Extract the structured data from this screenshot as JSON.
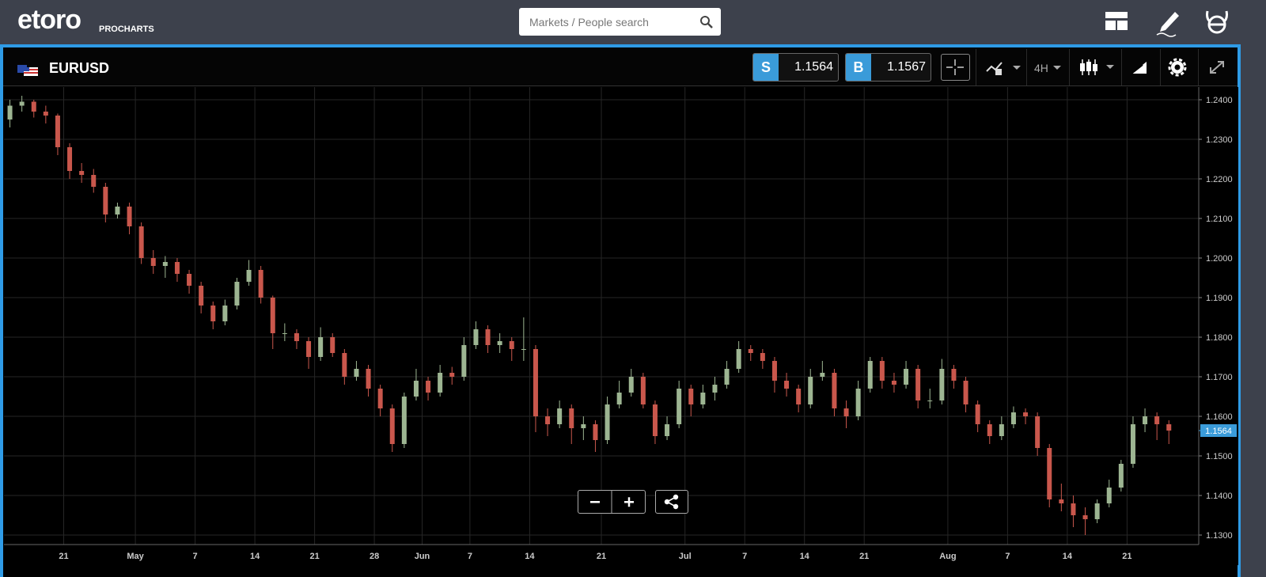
{
  "header": {
    "logo": "etoro",
    "brand": "PROCHARTS",
    "search_placeholder": "Markets / People search"
  },
  "toolbar": {
    "symbol": "EURUSD",
    "sell_label": "S",
    "sell_price": "1.1564",
    "buy_label": "B",
    "buy_price": "1.1567",
    "timeframe": "4H"
  },
  "chart_data": {
    "type": "candlestick",
    "up_color": "#9db592",
    "down_color": "#c9574c",
    "grid": true,
    "tag_color": "#3a9bd9",
    "last_price": 1.1564,
    "ylim": [
      1.1276,
      1.2432
    ],
    "yticks": [
      {
        "value": 1.13,
        "label": "1.1300"
      },
      {
        "value": 1.14,
        "label": "1.1400"
      },
      {
        "value": 1.15,
        "label": "1.1500"
      },
      {
        "value": 1.16,
        "label": "1.1600"
      },
      {
        "value": 1.17,
        "label": "1.1700"
      },
      {
        "value": 1.18,
        "label": "1.1800"
      },
      {
        "value": 1.19,
        "label": "1.1900"
      },
      {
        "value": 1.2,
        "label": "1.2000"
      },
      {
        "value": 1.21,
        "label": "1.2100"
      },
      {
        "value": 1.22,
        "label": "1.2200"
      },
      {
        "value": 1.23,
        "label": "1.2300"
      },
      {
        "value": 1.24,
        "label": "1.2400"
      }
    ],
    "categories": [
      null,
      null,
      null,
      null,
      null,
      "21",
      null,
      null,
      null,
      null,
      null,
      "May",
      null,
      null,
      null,
      null,
      "7",
      null,
      null,
      null,
      null,
      "14",
      null,
      null,
      null,
      null,
      "21",
      null,
      null,
      null,
      null,
      "28",
      null,
      null,
      null,
      "Jun",
      null,
      null,
      null,
      "7",
      null,
      null,
      null,
      null,
      "14",
      null,
      null,
      null,
      null,
      null,
      "21",
      null,
      null,
      null,
      null,
      null,
      null,
      "Jul",
      null,
      null,
      null,
      null,
      "7",
      null,
      null,
      null,
      null,
      "14",
      null,
      null,
      null,
      null,
      "21",
      null,
      null,
      null,
      null,
      null,
      null,
      "Aug",
      null,
      null,
      null,
      null,
      "7",
      null,
      null,
      null,
      null,
      "14",
      null,
      null,
      null,
      null,
      "21",
      null,
      null,
      null,
      null,
      null
    ],
    "ohlc": [
      [
        1.235,
        1.24,
        1.233,
        1.2385
      ],
      [
        1.2385,
        1.241,
        1.237,
        1.2395
      ],
      [
        1.2395,
        1.24,
        1.2355,
        1.237
      ],
      [
        1.237,
        1.2385,
        1.234,
        1.236
      ],
      [
        1.236,
        1.2365,
        1.226,
        1.228
      ],
      [
        1.228,
        1.229,
        1.22,
        1.222
      ],
      [
        1.222,
        1.224,
        1.219,
        1.221
      ],
      [
        1.221,
        1.2225,
        1.2165,
        1.218
      ],
      [
        1.218,
        1.219,
        1.209,
        1.211
      ],
      [
        1.211,
        1.214,
        1.21,
        1.213
      ],
      [
        1.213,
        1.214,
        1.206,
        1.208
      ],
      [
        1.208,
        1.209,
        1.1985,
        1.2
      ],
      [
        1.2,
        1.202,
        1.196,
        1.198
      ],
      [
        1.198,
        1.2005,
        1.195,
        1.199
      ],
      [
        1.199,
        1.2,
        1.194,
        1.196
      ],
      [
        1.196,
        1.197,
        1.191,
        1.193
      ],
      [
        1.193,
        1.194,
        1.186,
        1.188
      ],
      [
        1.188,
        1.189,
        1.182,
        1.184
      ],
      [
        1.184,
        1.1895,
        1.183,
        1.188
      ],
      [
        1.188,
        1.195,
        1.187,
        1.194
      ],
      [
        1.194,
        1.1995,
        1.193,
        1.197
      ],
      [
        1.197,
        1.198,
        1.1885,
        1.19
      ],
      [
        1.19,
        1.1905,
        1.177,
        1.181
      ],
      [
        1.181,
        1.1835,
        1.179,
        1.181
      ],
      [
        1.181,
        1.182,
        1.177,
        1.179
      ],
      [
        1.179,
        1.18,
        1.172,
        1.175
      ],
      [
        1.175,
        1.1825,
        1.174,
        1.18
      ],
      [
        1.18,
        1.181,
        1.175,
        1.176
      ],
      [
        1.176,
        1.177,
        1.168,
        1.17
      ],
      [
        1.17,
        1.174,
        1.169,
        1.172
      ],
      [
        1.172,
        1.173,
        1.165,
        1.167
      ],
      [
        1.167,
        1.168,
        1.16,
        1.162
      ],
      [
        1.162,
        1.163,
        1.151,
        1.153
      ],
      [
        1.153,
        1.166,
        1.152,
        1.165
      ],
      [
        1.165,
        1.172,
        1.164,
        1.169
      ],
      [
        1.169,
        1.17,
        1.164,
        1.166
      ],
      [
        1.166,
        1.173,
        1.165,
        1.171
      ],
      [
        1.171,
        1.1725,
        1.168,
        1.17
      ],
      [
        1.17,
        1.18,
        1.169,
        1.178
      ],
      [
        1.178,
        1.184,
        1.177,
        1.182
      ],
      [
        1.182,
        1.183,
        1.176,
        1.178
      ],
      [
        1.178,
        1.181,
        1.176,
        1.179
      ],
      [
        1.179,
        1.18,
        1.174,
        1.177
      ],
      [
        1.177,
        1.185,
        1.174,
        1.177
      ],
      [
        1.177,
        1.178,
        1.156,
        1.16
      ],
      [
        1.16,
        1.162,
        1.155,
        1.158
      ],
      [
        1.158,
        1.164,
        1.157,
        1.162
      ],
      [
        1.162,
        1.163,
        1.153,
        1.157
      ],
      [
        1.157,
        1.16,
        1.154,
        1.158
      ],
      [
        1.158,
        1.159,
        1.151,
        1.154
      ],
      [
        1.154,
        1.165,
        1.153,
        1.163
      ],
      [
        1.163,
        1.169,
        1.162,
        1.166
      ],
      [
        1.166,
        1.172,
        1.165,
        1.17
      ],
      [
        1.17,
        1.171,
        1.162,
        1.163
      ],
      [
        1.163,
        1.164,
        1.153,
        1.155
      ],
      [
        1.155,
        1.16,
        1.154,
        1.158
      ],
      [
        1.158,
        1.169,
        1.157,
        1.167
      ],
      [
        1.167,
        1.168,
        1.16,
        1.163
      ],
      [
        1.163,
        1.168,
        1.162,
        1.166
      ],
      [
        1.166,
        1.17,
        1.164,
        1.168
      ],
      [
        1.168,
        1.174,
        1.167,
        1.172
      ],
      [
        1.172,
        1.179,
        1.171,
        1.177
      ],
      [
        1.177,
        1.178,
        1.174,
        1.176
      ],
      [
        1.176,
        1.177,
        1.172,
        1.174
      ],
      [
        1.174,
        1.175,
        1.166,
        1.169
      ],
      [
        1.169,
        1.171,
        1.165,
        1.167
      ],
      [
        1.167,
        1.168,
        1.161,
        1.163
      ],
      [
        1.163,
        1.172,
        1.162,
        1.17
      ],
      [
        1.17,
        1.174,
        1.169,
        1.171
      ],
      [
        1.171,
        1.172,
        1.16,
        1.162
      ],
      [
        1.162,
        1.164,
        1.157,
        1.16
      ],
      [
        1.16,
        1.169,
        1.159,
        1.167
      ],
      [
        1.167,
        1.175,
        1.166,
        1.174
      ],
      [
        1.174,
        1.175,
        1.167,
        1.169
      ],
      [
        1.169,
        1.171,
        1.166,
        1.168
      ],
      [
        1.168,
        1.174,
        1.167,
        1.172
      ],
      [
        1.172,
        1.173,
        1.162,
        1.164
      ],
      [
        1.164,
        1.167,
        1.162,
        1.164
      ],
      [
        1.164,
        1.1745,
        1.163,
        1.172
      ],
      [
        1.172,
        1.173,
        1.167,
        1.169
      ],
      [
        1.169,
        1.17,
        1.161,
        1.163
      ],
      [
        1.163,
        1.164,
        1.156,
        1.158
      ],
      [
        1.158,
        1.159,
        1.153,
        1.155
      ],
      [
        1.155,
        1.16,
        1.154,
        1.158
      ],
      [
        1.158,
        1.1625,
        1.157,
        1.161
      ],
      [
        1.161,
        1.162,
        1.158,
        1.16
      ],
      [
        1.16,
        1.161,
        1.15,
        1.152
      ],
      [
        1.152,
        1.153,
        1.137,
        1.139
      ],
      [
        1.139,
        1.143,
        1.136,
        1.138
      ],
      [
        1.138,
        1.14,
        1.132,
        1.135
      ],
      [
        1.135,
        1.137,
        1.13,
        1.134
      ],
      [
        1.134,
        1.139,
        1.133,
        1.138
      ],
      [
        1.138,
        1.144,
        1.137,
        1.142
      ],
      [
        1.142,
        1.149,
        1.141,
        1.148
      ],
      [
        1.148,
        1.16,
        1.147,
        1.158
      ],
      [
        1.158,
        1.162,
        1.156,
        1.16
      ],
      [
        1.16,
        1.161,
        1.154,
        1.158
      ],
      [
        1.158,
        1.159,
        1.153,
        1.1564
      ],
      null,
      null
    ]
  }
}
